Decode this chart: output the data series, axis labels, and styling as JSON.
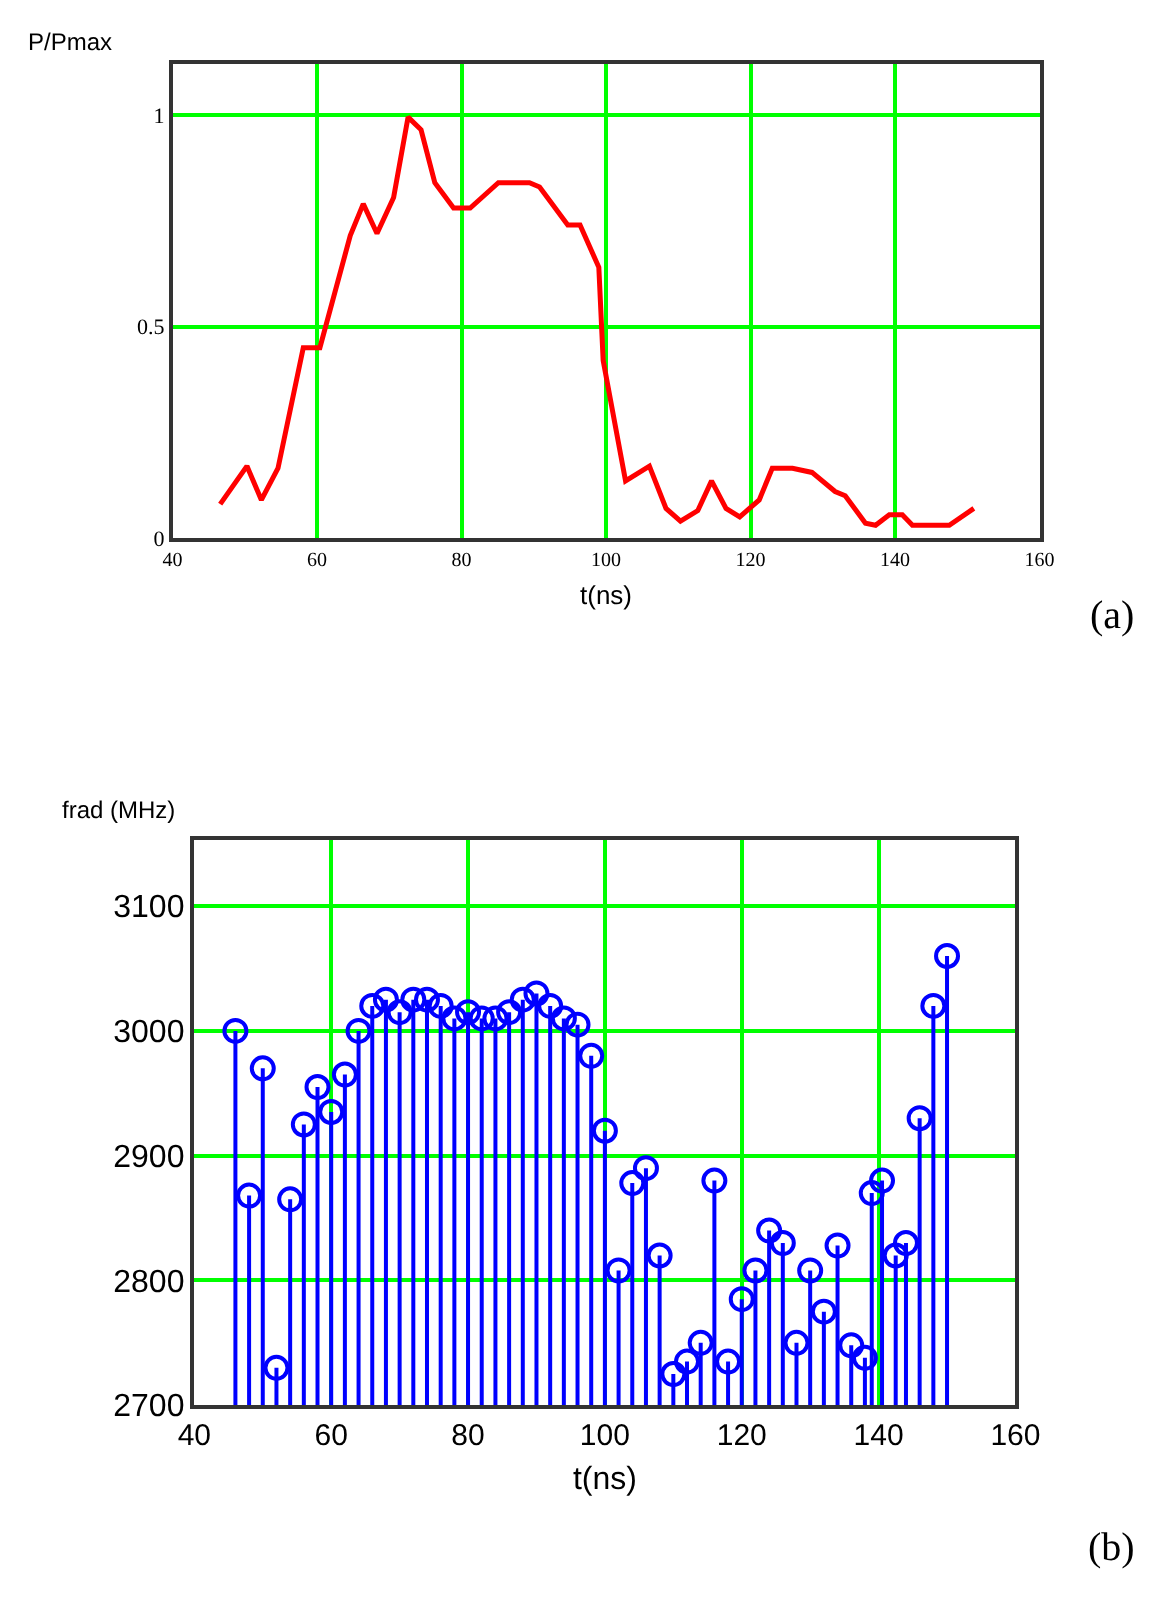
{
  "chart_data": [
    {
      "type": "line",
      "xlabel": "t(ns)",
      "ylabel": "P/Pmax",
      "annotations": [
        "(a)"
      ],
      "x": [
        46.6,
        50.3,
        52.3,
        54.6,
        58.1,
        60.4,
        64.6,
        66.4,
        68.3,
        70.6,
        72.6,
        74.4,
        76.3,
        78.9,
        81.2,
        85.1,
        89.4,
        90.8,
        94.7,
        96.4,
        99.0,
        99.6,
        102.7,
        106.0,
        108.3,
        110.3,
        112.7,
        114.6,
        116.6,
        118.5,
        121.2,
        123.0,
        125.8,
        128.5,
        131.7,
        133.1,
        135.9,
        137.3,
        139.2,
        141.0,
        142.4,
        147.5,
        150.9
      ],
      "series": [
        {
          "color": "#ff0000",
          "values": [
            0.08,
            0.17,
            0.09,
            0.165,
            0.45,
            0.45,
            0.715,
            0.79,
            0.72,
            0.805,
            0.995,
            0.965,
            0.84,
            0.78,
            0.78,
            0.84,
            0.84,
            0.83,
            0.74,
            0.74,
            0.64,
            0.42,
            0.135,
            0.17,
            0.07,
            0.04,
            0.065,
            0.135,
            0.07,
            0.05,
            0.09,
            0.165,
            0.165,
            0.155,
            0.11,
            0.1,
            0.035,
            0.03,
            0.055,
            0.055,
            0.03,
            0.03,
            0.07
          ]
        }
      ],
      "xlim": [
        40,
        160
      ],
      "xticks": [
        40,
        60,
        80,
        100,
        120,
        140,
        160
      ],
      "ylim": [
        0,
        1.12
      ],
      "yticks": [
        0,
        0.5,
        1
      ],
      "grid": true,
      "line_style": "solid",
      "marker": "none",
      "legend": false
    },
    {
      "type": "lollipop",
      "xlabel": "t(ns)",
      "ylabel": "frad (MHz)",
      "annotations": [
        "(b)"
      ],
      "x": [
        46,
        48,
        50,
        52,
        54,
        56,
        58,
        60,
        62,
        64,
        66,
        68,
        70,
        72,
        74,
        76,
        78,
        80,
        82,
        84,
        86,
        88,
        90,
        92,
        94,
        96,
        98,
        100,
        102,
        104,
        106,
        108,
        110,
        112,
        114,
        116,
        118,
        120,
        122,
        124,
        126,
        128,
        130,
        132,
        134,
        136,
        138,
        139,
        140.5,
        142.5,
        144,
        146,
        148,
        150
      ],
      "series": [
        {
          "color": "#0000ff",
          "values": [
            3000,
            2868,
            2970,
            2730,
            2865,
            2925,
            2955,
            2935,
            2965,
            3000,
            3020,
            3025,
            3015,
            3025,
            3025,
            3020,
            3010,
            3015,
            3010,
            3010,
            3015,
            3025,
            3030,
            3020,
            3010,
            3005,
            2980,
            2920,
            2808,
            2878,
            2890,
            2820,
            2725,
            2735,
            2750,
            2880,
            2735,
            2785,
            2808,
            2840,
            2830,
            2750,
            2808,
            2775,
            2828,
            2748,
            2738,
            2870,
            2880,
            2820,
            2830,
            2930,
            3020,
            3060
          ]
        }
      ],
      "xlim": [
        40,
        160
      ],
      "xticks": [
        40,
        60,
        80,
        100,
        120,
        140,
        160
      ],
      "ylim": [
        2700,
        3153
      ],
      "yticks": [
        2700,
        2800,
        2900,
        3000,
        3100
      ],
      "grid": true,
      "marker": "circle",
      "legend": false
    }
  ]
}
